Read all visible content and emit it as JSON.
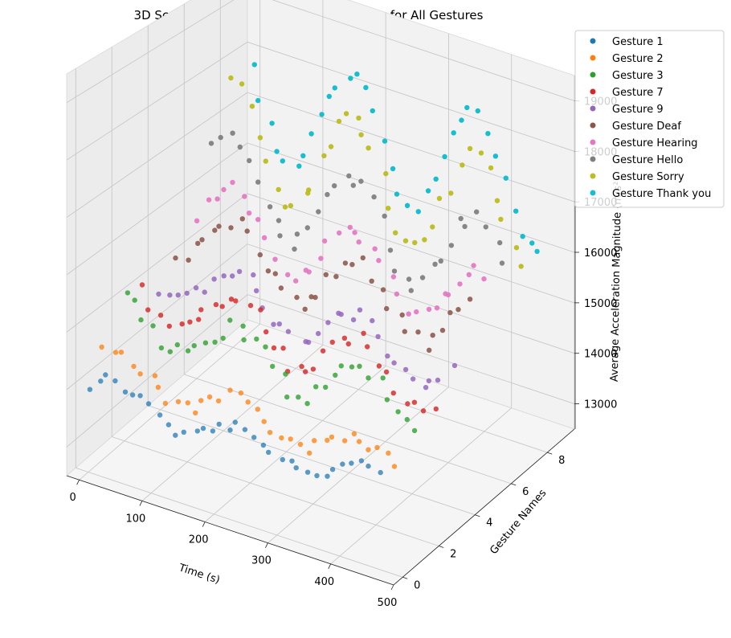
{
  "chart_data": {
    "type": "scatter",
    "projection": "3d",
    "title": "3D Scatter Plot of Acceleration Magnitude for All Gestures",
    "xlabel": "Time (s)",
    "ylabel": "Gesture Names",
    "zlabel": "Average Acceleration Magnitude (m/s²)",
    "xlim": [
      -20,
      500
    ],
    "ylim": [
      -0.5,
      9.5
    ],
    "zlim": [
      12500,
      19500
    ],
    "xticks": [
      0,
      100,
      200,
      300,
      400,
      500
    ],
    "yticks": [
      0,
      2,
      4,
      6,
      8
    ],
    "zticks": [
      13000,
      14000,
      15000,
      16000,
      17000,
      18000,
      19000
    ],
    "xtick_labels": [
      "0",
      "100",
      "200",
      "300",
      "400",
      "500"
    ],
    "ytick_labels": [
      "0",
      "2",
      "4",
      "6",
      "8"
    ],
    "ztick_labels": [
      "13000",
      "14000",
      "15000",
      "16000",
      "17000",
      "18000",
      "19000"
    ],
    "grid": true,
    "legend_position": "top-right",
    "series": [
      {
        "name": "Gesture 1",
        "color": "#1f77b4",
        "y_index": 0,
        "z_range": [
          13700,
          14300
        ]
      },
      {
        "name": "Gesture 2",
        "color": "#ff7f0e",
        "y_index": 1,
        "z_range": [
          13700,
          14500
        ]
      },
      {
        "name": "Gesture 3",
        "color": "#2ca02c",
        "y_index": 2,
        "z_range": [
          14200,
          15400
        ]
      },
      {
        "name": "Gesture 7",
        "color": "#d62728",
        "y_index": 3,
        "z_range": [
          14300,
          15600
        ]
      },
      {
        "name": "Gesture 9",
        "color": "#9467bd",
        "y_index": 4,
        "z_range": [
          14500,
          15600
        ]
      },
      {
        "name": "Gesture Deaf",
        "color": "#8c564b",
        "y_index": 5,
        "z_range": [
          14700,
          16300
        ]
      },
      {
        "name": "Gesture Hearing",
        "color": "#e377c2",
        "y_index": 6,
        "z_range": [
          14800,
          16600
        ]
      },
      {
        "name": "Gesture Hello",
        "color": "#7f7f7f",
        "y_index": 7,
        "z_range": [
          15000,
          17300
        ]
      },
      {
        "name": "Gesture Sorry",
        "color": "#bcbd22",
        "y_index": 8,
        "z_range": [
          15200,
          18200
        ]
      },
      {
        "name": "Gesture Thank you",
        "color": "#17becf",
        "y_index": 9,
        "z_range": [
          15600,
          18700
        ]
      }
    ]
  }
}
